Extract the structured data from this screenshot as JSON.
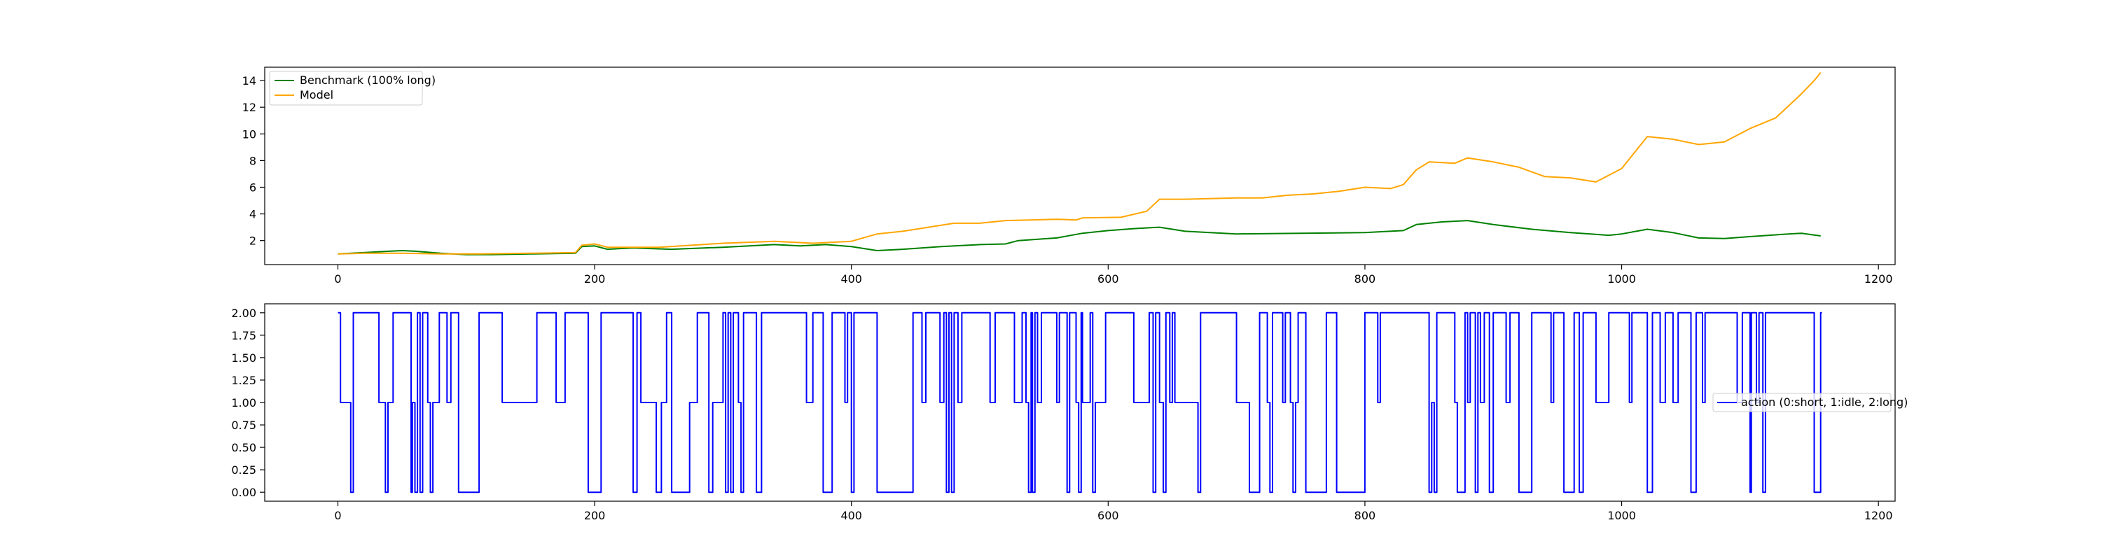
{
  "chart_data": [
    {
      "type": "line",
      "title": "",
      "xlabel": "",
      "ylabel": "",
      "xlim": [
        -57,
        1213
      ],
      "ylim": [
        0.2,
        15.0
      ],
      "xticks": [
        0,
        200,
        400,
        600,
        800,
        1000,
        1200
      ],
      "yticks": [
        2,
        4,
        6,
        8,
        10,
        12,
        14
      ],
      "grid": false,
      "legend_position": "top-left",
      "series": [
        {
          "name": "Benchmark (100% long)",
          "color": "#008000",
          "points": [
            [
              0,
              1.0
            ],
            [
              20,
              1.1
            ],
            [
              40,
              1.2
            ],
            [
              50,
              1.25
            ],
            [
              60,
              1.2
            ],
            [
              80,
              1.05
            ],
            [
              100,
              0.95
            ],
            [
              120,
              0.95
            ],
            [
              150,
              1.0
            ],
            [
              185,
              1.05
            ],
            [
              190,
              1.55
            ],
            [
              200,
              1.6
            ],
            [
              210,
              1.35
            ],
            [
              230,
              1.45
            ],
            [
              260,
              1.35
            ],
            [
              300,
              1.5
            ],
            [
              340,
              1.7
            ],
            [
              360,
              1.6
            ],
            [
              380,
              1.7
            ],
            [
              400,
              1.55
            ],
            [
              420,
              1.25
            ],
            [
              440,
              1.35
            ],
            [
              470,
              1.55
            ],
            [
              500,
              1.7
            ],
            [
              520,
              1.75
            ],
            [
              530,
              2.0
            ],
            [
              560,
              2.2
            ],
            [
              580,
              2.55
            ],
            [
              600,
              2.75
            ],
            [
              620,
              2.9
            ],
            [
              640,
              3.0
            ],
            [
              660,
              2.7
            ],
            [
              700,
              2.5
            ],
            [
              750,
              2.55
            ],
            [
              800,
              2.6
            ],
            [
              830,
              2.75
            ],
            [
              840,
              3.2
            ],
            [
              860,
              3.4
            ],
            [
              880,
              3.5
            ],
            [
              900,
              3.2
            ],
            [
              930,
              2.85
            ],
            [
              960,
              2.6
            ],
            [
              990,
              2.4
            ],
            [
              1000,
              2.5
            ],
            [
              1020,
              2.85
            ],
            [
              1040,
              2.6
            ],
            [
              1060,
              2.2
            ],
            [
              1080,
              2.15
            ],
            [
              1100,
              2.3
            ],
            [
              1130,
              2.5
            ],
            [
              1140,
              2.55
            ],
            [
              1155,
              2.35
            ]
          ]
        },
        {
          "name": "Model",
          "color": "#FFA500",
          "points": [
            [
              0,
              1.0
            ],
            [
              20,
              1.05
            ],
            [
              50,
              1.05
            ],
            [
              80,
              1.0
            ],
            [
              110,
              1.0
            ],
            [
              150,
              1.05
            ],
            [
              185,
              1.1
            ],
            [
              190,
              1.65
            ],
            [
              200,
              1.75
            ],
            [
              210,
              1.5
            ],
            [
              250,
              1.5
            ],
            [
              300,
              1.8
            ],
            [
              340,
              1.95
            ],
            [
              370,
              1.8
            ],
            [
              400,
              1.95
            ],
            [
              420,
              2.5
            ],
            [
              440,
              2.7
            ],
            [
              460,
              3.0
            ],
            [
              480,
              3.3
            ],
            [
              500,
              3.3
            ],
            [
              520,
              3.5
            ],
            [
              560,
              3.6
            ],
            [
              575,
              3.55
            ],
            [
              580,
              3.7
            ],
            [
              610,
              3.75
            ],
            [
              630,
              4.2
            ],
            [
              640,
              5.1
            ],
            [
              660,
              5.1
            ],
            [
              700,
              5.2
            ],
            [
              720,
              5.2
            ],
            [
              740,
              5.4
            ],
            [
              760,
              5.5
            ],
            [
              780,
              5.7
            ],
            [
              800,
              6.0
            ],
            [
              820,
              5.9
            ],
            [
              830,
              6.2
            ],
            [
              840,
              7.3
            ],
            [
              850,
              7.9
            ],
            [
              870,
              7.8
            ],
            [
              880,
              8.2
            ],
            [
              900,
              7.9
            ],
            [
              920,
              7.5
            ],
            [
              940,
              6.8
            ],
            [
              960,
              6.7
            ],
            [
              980,
              6.4
            ],
            [
              1000,
              7.4
            ],
            [
              1010,
              8.6
            ],
            [
              1020,
              9.8
            ],
            [
              1040,
              9.6
            ],
            [
              1060,
              9.2
            ],
            [
              1080,
              9.4
            ],
            [
              1100,
              10.4
            ],
            [
              1120,
              11.2
            ],
            [
              1140,
              13.0
            ],
            [
              1150,
              14.0
            ],
            [
              1155,
              14.6
            ]
          ]
        }
      ]
    },
    {
      "type": "line",
      "title": "",
      "xlabel": "",
      "ylabel": "",
      "xlim": [
        -57,
        1213
      ],
      "ylim": [
        -0.1,
        2.1
      ],
      "xticks": [
        0,
        200,
        400,
        600,
        800,
        1000,
        1200
      ],
      "yticks": [
        "0.00",
        "0.25",
        "0.50",
        "0.75",
        "1.00",
        "1.25",
        "1.50",
        "1.75",
        "2.00"
      ],
      "grid": false,
      "legend_position": "center-right",
      "series": [
        {
          "name": "action (0:short, 1:idle, 2:long)",
          "color": "#0000FF",
          "step_points": [
            [
              0,
              2
            ],
            [
              2,
              1
            ],
            [
              10,
              0
            ],
            [
              12,
              2
            ],
            [
              32,
              1
            ],
            [
              37,
              0
            ],
            [
              39,
              1
            ],
            [
              43,
              2
            ],
            [
              57,
              0
            ],
            [
              58,
              1
            ],
            [
              60,
              0
            ],
            [
              62,
              2
            ],
            [
              64,
              0
            ],
            [
              66,
              2
            ],
            [
              70,
              1
            ],
            [
              72,
              0
            ],
            [
              74,
              1
            ],
            [
              79,
              2
            ],
            [
              85,
              1
            ],
            [
              88,
              2
            ],
            [
              94,
              0
            ],
            [
              110,
              2
            ],
            [
              128,
              1
            ],
            [
              155,
              2
            ],
            [
              170,
              1
            ],
            [
              177,
              2
            ],
            [
              195,
              0
            ],
            [
              205,
              2
            ],
            [
              230,
              0
            ],
            [
              233,
              2
            ],
            [
              236,
              1
            ],
            [
              248,
              0
            ],
            [
              252,
              1
            ],
            [
              256,
              2
            ],
            [
              260,
              0
            ],
            [
              274,
              1
            ],
            [
              280,
              2
            ],
            [
              289,
              0
            ],
            [
              292,
              1
            ],
            [
              300,
              2
            ],
            [
              302,
              0
            ],
            [
              304,
              2
            ],
            [
              306,
              0
            ],
            [
              308,
              2
            ],
            [
              312,
              1
            ],
            [
              314,
              0
            ],
            [
              316,
              2
            ],
            [
              326,
              0
            ],
            [
              330,
              2
            ],
            [
              365,
              1
            ],
            [
              370,
              2
            ],
            [
              378,
              0
            ],
            [
              385,
              2
            ],
            [
              395,
              1
            ],
            [
              397,
              2
            ],
            [
              400,
              0
            ],
            [
              402,
              2
            ],
            [
              420,
              0
            ],
            [
              448,
              2
            ],
            [
              455,
              1
            ],
            [
              458,
              2
            ],
            [
              469,
              1
            ],
            [
              472,
              2
            ],
            [
              474,
              0
            ],
            [
              476,
              2
            ],
            [
              478,
              0
            ],
            [
              480,
              2
            ],
            [
              483,
              1
            ],
            [
              486,
              2
            ],
            [
              508,
              1
            ],
            [
              512,
              2
            ],
            [
              527,
              1
            ],
            [
              533,
              2
            ],
            [
              536,
              1
            ],
            [
              538,
              0
            ],
            [
              540,
              2
            ],
            [
              541,
              0
            ],
            [
              543,
              2
            ],
            [
              545,
              1
            ],
            [
              548,
              2
            ],
            [
              560,
              1
            ],
            [
              562,
              2
            ],
            [
              568,
              0
            ],
            [
              570,
              2
            ],
            [
              575,
              1
            ],
            [
              577,
              0
            ],
            [
              579,
              2
            ],
            [
              580,
              1
            ],
            [
              586,
              2
            ],
            [
              588,
              0
            ],
            [
              590,
              1
            ],
            [
              598,
              2
            ],
            [
              620,
              1
            ],
            [
              632,
              2
            ],
            [
              635,
              0
            ],
            [
              637,
              2
            ],
            [
              640,
              1
            ],
            [
              643,
              0
            ],
            [
              645,
              2
            ],
            [
              648,
              1
            ],
            [
              650,
              2
            ],
            [
              652,
              1
            ],
            [
              670,
              0
            ],
            [
              672,
              2
            ],
            [
              690,
              2
            ],
            [
              700,
              1
            ],
            [
              710,
              0
            ],
            [
              718,
              2
            ],
            [
              724,
              1
            ],
            [
              726,
              0
            ],
            [
              728,
              2
            ],
            [
              736,
              1
            ],
            [
              738,
              2
            ],
            [
              742,
              1
            ],
            [
              744,
              0
            ],
            [
              746,
              1
            ],
            [
              748,
              2
            ],
            [
              754,
              0
            ],
            [
              770,
              2
            ],
            [
              778,
              0
            ],
            [
              800,
              2
            ],
            [
              810,
              1
            ],
            [
              812,
              2
            ],
            [
              850,
              0
            ],
            [
              852,
              1
            ],
            [
              854,
              0
            ],
            [
              856,
              2
            ],
            [
              870,
              1
            ],
            [
              872,
              0
            ],
            [
              878,
              2
            ],
            [
              880,
              1
            ],
            [
              882,
              2
            ],
            [
              886,
              0
            ],
            [
              888,
              2
            ],
            [
              890,
              1
            ],
            [
              893,
              2
            ],
            [
              897,
              0
            ],
            [
              900,
              2
            ],
            [
              910,
              1
            ],
            [
              913,
              2
            ],
            [
              920,
              0
            ],
            [
              930,
              2
            ],
            [
              945,
              1
            ],
            [
              947,
              2
            ],
            [
              955,
              0
            ],
            [
              963,
              2
            ],
            [
              967,
              0
            ],
            [
              970,
              2
            ],
            [
              980,
              1
            ],
            [
              990,
              2
            ],
            [
              1006,
              1
            ],
            [
              1008,
              2
            ],
            [
              1020,
              0
            ],
            [
              1024,
              2
            ],
            [
              1030,
              1
            ],
            [
              1034,
              2
            ],
            [
              1040,
              1
            ],
            [
              1044,
              2
            ],
            [
              1054,
              0
            ],
            [
              1058,
              2
            ],
            [
              1063,
              1
            ],
            [
              1065,
              2
            ],
            [
              1090,
              1
            ],
            [
              1094,
              2
            ],
            [
              1100,
              0
            ],
            [
              1101,
              2
            ],
            [
              1105,
              1
            ],
            [
              1107,
              2
            ],
            [
              1110,
              0
            ],
            [
              1112,
              2
            ],
            [
              1150,
              0
            ],
            [
              1155,
              2
            ],
            [
              1156,
              2
            ]
          ]
        }
      ]
    }
  ]
}
